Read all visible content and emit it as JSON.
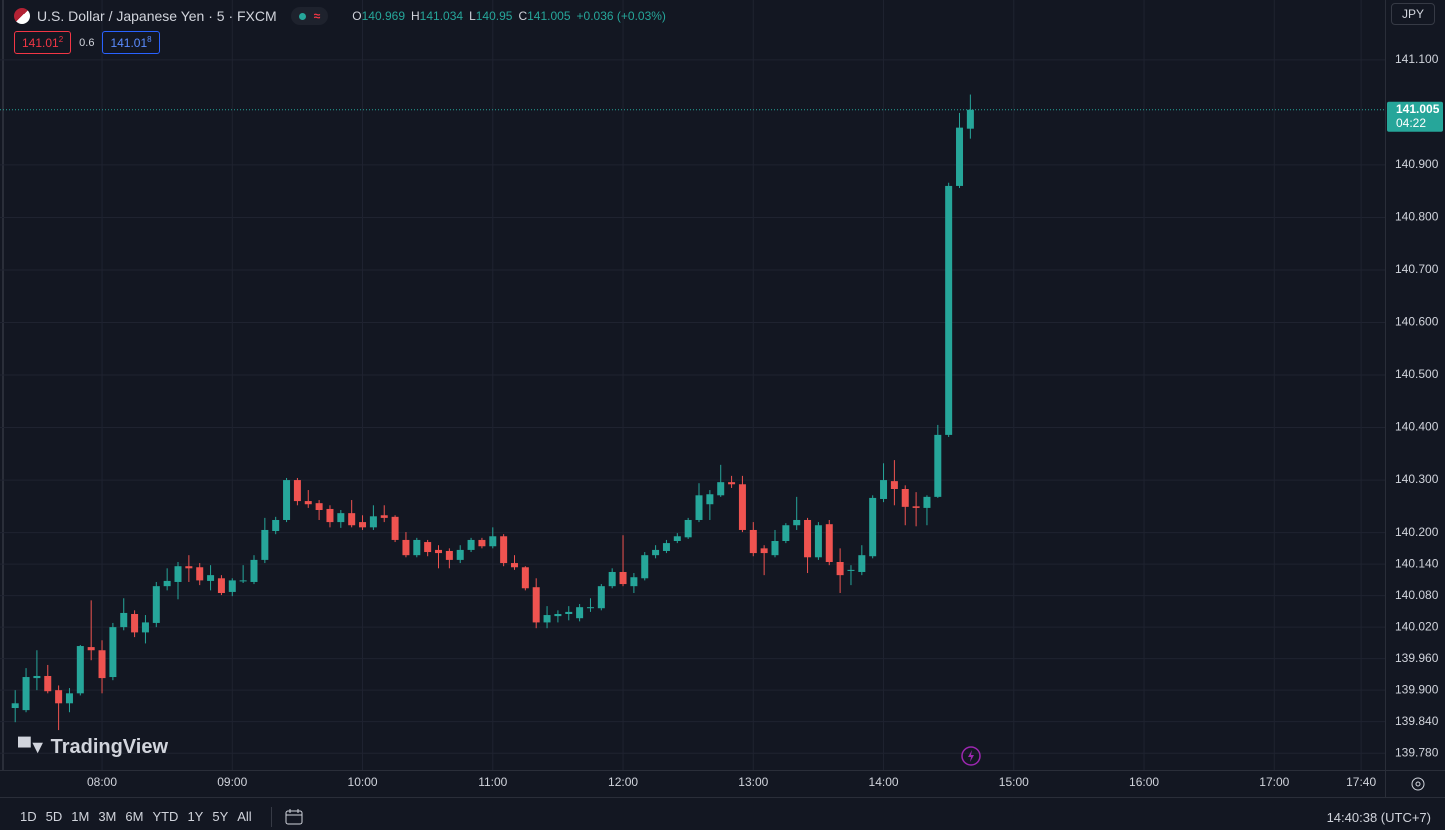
{
  "chart_data": {
    "type": "candlestick",
    "header": {
      "symbol": "U.S. Dollar / Japanese Yen · 5 · FXCM",
      "ohlc_labels": [
        "O",
        "H",
        "L",
        "C"
      ],
      "change": "+0.036 (+0.03%)",
      "sell": {
        "main": "141.01",
        "pip": "2"
      },
      "spread": "0.6",
      "buy": {
        "main": "141.01",
        "pip": "8"
      }
    },
    "currency": "JPY",
    "countdown": "04:22",
    "logo": "TradingView",
    "ranges": [
      "1D",
      "5D",
      "1M",
      "3M",
      "6M",
      "YTD",
      "1Y",
      "5Y",
      "All"
    ],
    "clock": "14:40:38 (UTC+7)",
    "up_color": "#26a69a",
    "down_color": "#ef5350",
    "grid": true,
    "x": [
      "07:20",
      "07:25",
      "07:30",
      "07:35",
      "07:40",
      "07:45",
      "07:50",
      "07:55",
      "08:00",
      "08:05",
      "08:10",
      "08:15",
      "08:20",
      "08:25",
      "08:30",
      "08:35",
      "08:40",
      "08:45",
      "08:50",
      "08:55",
      "09:00",
      "09:05",
      "09:10",
      "09:15",
      "09:20",
      "09:25",
      "09:30",
      "09:35",
      "09:40",
      "09:45",
      "09:50",
      "09:55",
      "10:00",
      "10:05",
      "10:10",
      "10:15",
      "10:20",
      "10:25",
      "10:30",
      "10:35",
      "10:40",
      "10:45",
      "10:50",
      "10:55",
      "11:00",
      "11:05",
      "11:10",
      "11:15",
      "11:20",
      "11:25",
      "11:30",
      "11:35",
      "11:40",
      "11:45",
      "11:50",
      "11:55",
      "12:00",
      "12:05",
      "12:10",
      "12:15",
      "12:20",
      "12:25",
      "12:30",
      "12:35",
      "12:40",
      "12:45",
      "12:50",
      "12:55",
      "13:00",
      "13:05",
      "13:10",
      "13:15",
      "13:20",
      "13:25",
      "13:30",
      "13:35",
      "13:40",
      "13:45",
      "13:50",
      "13:55",
      "14:00",
      "14:05",
      "14:10",
      "14:15",
      "14:20",
      "14:25",
      "14:30",
      "14:35",
      "14:40"
    ],
    "open": [
      139.866,
      139.862,
      139.923,
      139.927,
      139.9,
      139.875,
      139.894,
      139.982,
      139.976,
      139.925,
      140.02,
      140.045,
      140.01,
      140.028,
      140.098,
      140.106,
      140.136,
      140.134,
      140.108,
      140.113,
      140.087,
      140.108,
      140.106,
      140.148,
      140.203,
      140.224,
      140.3,
      140.26,
      140.256,
      140.245,
      140.22,
      140.237,
      140.22,
      140.21,
      140.233,
      140.23,
      140.186,
      140.157,
      140.182,
      140.167,
      140.165,
      140.148,
      140.167,
      140.186,
      140.174,
      140.193,
      140.142,
      140.134,
      140.096,
      140.029,
      140.041,
      140.045,
      140.037,
      140.056,
      140.056,
      140.098,
      140.125,
      140.098,
      140.113,
      140.157,
      140.165,
      140.184,
      140.191,
      140.224,
      140.254,
      140.271,
      140.296,
      140.292,
      140.205,
      140.17,
      140.157,
      140.184,
      140.214,
      140.224,
      140.153,
      140.216,
      140.144,
      140.127,
      140.125,
      140.155,
      140.264,
      140.298,
      140.283,
      140.25,
      140.247,
      140.268,
      140.386,
      140.86,
      140.969
    ],
    "high": [
      139.9,
      139.942,
      139.976,
      139.948,
      139.909,
      139.904,
      139.986,
      140.071,
      139.995,
      140.028,
      140.075,
      140.052,
      140.043,
      140.106,
      140.132,
      140.144,
      140.157,
      140.142,
      140.138,
      140.119,
      140.113,
      140.138,
      140.157,
      140.228,
      140.23,
      140.304,
      140.304,
      140.281,
      140.262,
      140.252,
      140.243,
      140.262,
      140.233,
      140.252,
      140.252,
      140.233,
      140.201,
      140.19,
      140.186,
      140.176,
      140.17,
      140.176,
      140.19,
      140.19,
      140.21,
      140.197,
      140.157,
      140.136,
      140.113,
      140.06,
      140.052,
      140.06,
      140.064,
      140.075,
      140.102,
      140.132,
      140.195,
      140.123,
      140.163,
      140.176,
      140.186,
      140.199,
      140.228,
      140.294,
      140.281,
      140.329,
      140.308,
      140.308,
      140.22,
      140.176,
      140.205,
      140.218,
      140.268,
      140.228,
      140.22,
      140.224,
      140.17,
      140.138,
      140.176,
      140.271,
      140.332,
      140.338,
      140.29,
      140.277,
      140.271,
      140.405,
      140.866,
      140.999,
      141.034
    ],
    "low": [
      139.839,
      139.858,
      139.9,
      139.894,
      139.824,
      139.858,
      139.89,
      139.957,
      139.894,
      139.919,
      140.014,
      140.001,
      139.989,
      140.02,
      140.09,
      140.073,
      140.106,
      140.1,
      140.09,
      140.081,
      140.079,
      140.104,
      140.102,
      140.142,
      140.197,
      140.22,
      140.252,
      140.247,
      140.224,
      140.21,
      140.209,
      140.21,
      140.205,
      140.205,
      140.22,
      140.182,
      140.153,
      140.153,
      140.155,
      140.132,
      140.132,
      140.142,
      140.163,
      140.17,
      140.17,
      140.136,
      140.129,
      140.09,
      140.018,
      140.018,
      140.029,
      140.033,
      140.031,
      140.049,
      140.052,
      140.094,
      140.098,
      140.085,
      140.109,
      140.151,
      140.161,
      140.18,
      140.188,
      140.22,
      140.224,
      140.268,
      140.285,
      140.201,
      140.155,
      140.119,
      140.153,
      140.18,
      140.205,
      140.123,
      140.148,
      140.138,
      140.085,
      140.1,
      140.119,
      140.151,
      140.258,
      140.252,
      140.214,
      140.212,
      140.214,
      140.266,
      140.382,
      140.856,
      140.95
    ],
    "close": [
      139.875,
      139.925,
      139.927,
      139.898,
      139.875,
      139.894,
      139.984,
      139.976,
      139.923,
      140.02,
      140.047,
      140.01,
      140.029,
      140.098,
      140.108,
      140.136,
      140.132,
      140.109,
      140.119,
      140.085,
      140.109,
      140.109,
      140.148,
      140.205,
      140.224,
      140.3,
      140.26,
      140.254,
      140.243,
      140.22,
      140.237,
      140.214,
      140.21,
      140.231,
      140.228,
      140.186,
      140.157,
      140.186,
      140.163,
      140.161,
      140.148,
      140.167,
      140.186,
      140.174,
      140.193,
      140.142,
      140.134,
      140.094,
      140.029,
      140.043,
      140.045,
      140.049,
      140.058,
      140.058,
      140.098,
      140.125,
      140.102,
      140.115,
      140.157,
      140.167,
      140.18,
      140.193,
      140.224,
      140.271,
      140.273,
      140.296,
      140.292,
      140.205,
      140.161,
      140.161,
      140.184,
      140.214,
      140.224,
      140.153,
      140.214,
      140.144,
      140.119,
      140.129,
      140.157,
      140.266,
      140.3,
      140.283,
      140.249,
      140.247,
      140.268,
      140.386,
      140.86,
      140.971,
      141.005
    ],
    "xlim": [
      "07:13",
      "17:51"
    ],
    "xticks": [
      "08:00",
      "09:00",
      "10:00",
      "11:00",
      "12:00",
      "13:00",
      "14:00",
      "15:00",
      "16:00",
      "17:00",
      "17:40"
    ],
    "ylim": [
      139.748,
      141.214
    ],
    "yticks": [
      {
        "value": 141.1,
        "label": "141.100"
      },
      {
        "value": 140.9,
        "label": "140.900"
      },
      {
        "value": 140.8,
        "label": "140.800"
      },
      {
        "value": 140.7,
        "label": "140.700"
      },
      {
        "value": 140.6,
        "label": "140.600"
      },
      {
        "value": 140.5,
        "label": "140.500"
      },
      {
        "value": 140.4,
        "label": "140.400"
      },
      {
        "value": 140.3,
        "label": "140.300"
      },
      {
        "value": 140.2,
        "label": "140.200"
      },
      {
        "value": 140.14,
        "label": "140.140"
      },
      {
        "value": 140.08,
        "label": "140.080"
      },
      {
        "value": 140.02,
        "label": "140.020"
      },
      {
        "value": 139.96,
        "label": "139.960"
      },
      {
        "value": 139.9,
        "label": "139.900"
      },
      {
        "value": 139.84,
        "label": "139.840"
      },
      {
        "value": 139.78,
        "label": "139.780"
      }
    ]
  }
}
